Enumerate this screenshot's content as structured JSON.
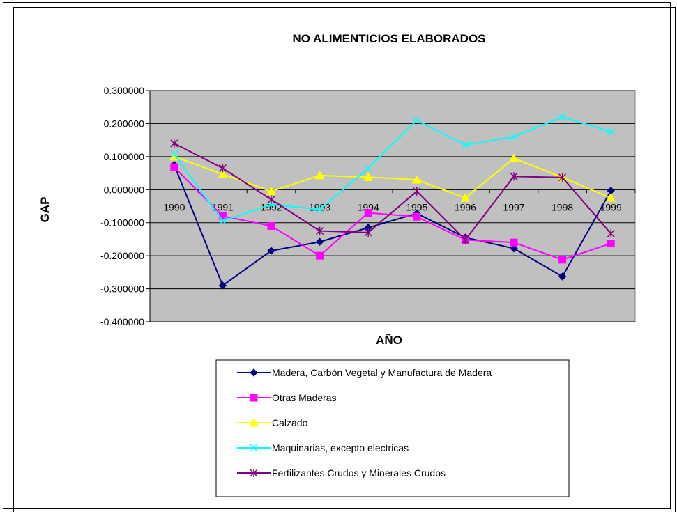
{
  "chart_data": {
    "type": "line",
    "title": "NO ALIMENTICIOS ELABORADOS",
    "xlabel": "AÑO",
    "ylabel": "GAP",
    "ylim": [
      -0.4,
      0.3
    ],
    "ytick_step": 0.1,
    "ytick_labels": [
      "0.300000",
      "0.200000",
      "0.100000",
      "0.000000",
      "-0.100000",
      "-0.200000",
      "-0.300000",
      "-0.400000"
    ],
    "categories": [
      "1990",
      "1991",
      "1992",
      "1993",
      "1994",
      "1995",
      "1996",
      "1997",
      "1998",
      "1999"
    ],
    "plot_background": "#c0c0c0",
    "grid": true,
    "legend_position": "bottom",
    "series": [
      {
        "name": "Madera, Carbón Vegetal y Manufactura de Madera",
        "color": "#000080",
        "marker": "diamond",
        "values": [
          0.075,
          -0.29,
          -0.185,
          -0.158,
          -0.115,
          -0.072,
          -0.145,
          -0.178,
          -0.263,
          -0.003
        ]
      },
      {
        "name": "Otras Maderas",
        "color": "#ff00ff",
        "marker": "square",
        "values": [
          0.068,
          -0.08,
          -0.11,
          -0.2,
          -0.07,
          -0.082,
          -0.152,
          -0.16,
          -0.212,
          -0.163
        ]
      },
      {
        "name": "Calzado",
        "color": "#ffff00",
        "marker": "triangle",
        "values": [
          0.1,
          0.047,
          -0.005,
          0.043,
          0.038,
          0.03,
          -0.025,
          0.095,
          0.037,
          -0.025
        ]
      },
      {
        "name": "Maquinarias, excepto electricas",
        "color": "#00ffff",
        "marker": "x",
        "values": [
          0.108,
          -0.095,
          -0.045,
          -0.06,
          0.065,
          0.21,
          0.135,
          0.16,
          0.22,
          0.175
        ]
      },
      {
        "name": "Fertilizantes Crudos y Minerales Crudos",
        "color": "#800080",
        "marker": "star",
        "values": [
          0.14,
          0.065,
          -0.03,
          -0.125,
          -0.13,
          -0.005,
          -0.152,
          0.04,
          0.037,
          -0.133
        ]
      }
    ]
  }
}
